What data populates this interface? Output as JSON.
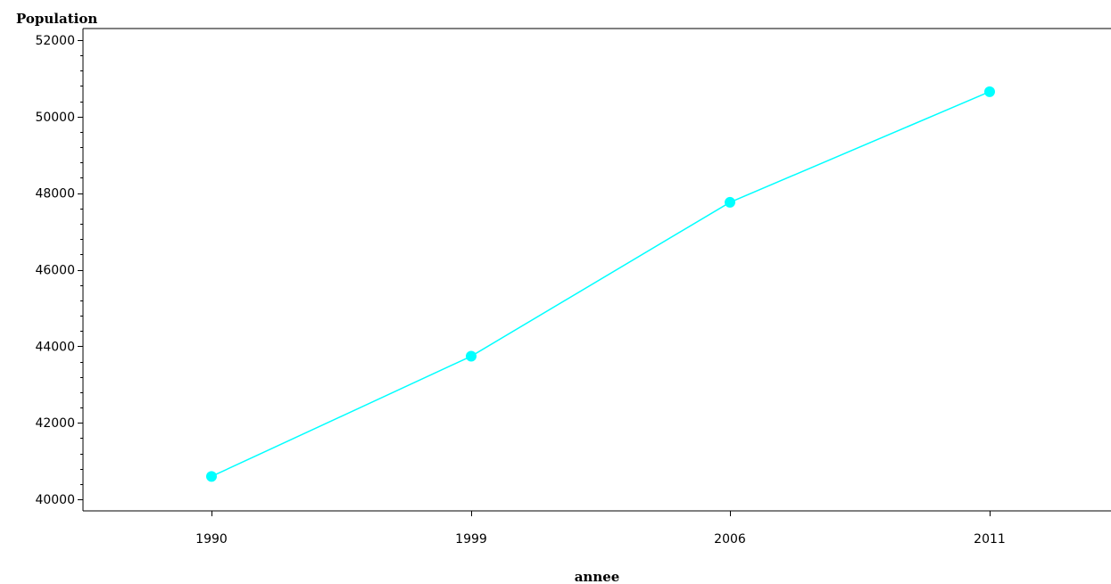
{
  "chart_data": {
    "type": "line",
    "title": "",
    "xlabel": "annee",
    "ylabel": "Population",
    "categories": [
      "1990",
      "1999",
      "2006",
      "2011"
    ],
    "series": [
      {
        "values": [
          40600,
          43740,
          47760,
          50650
        ],
        "color": "#00ffff"
      }
    ],
    "ylim": [
      39700,
      52300
    ],
    "yticks": [
      40000,
      42000,
      44000,
      46000,
      48000,
      50000,
      52000
    ],
    "ytick_labels": [
      "40000",
      "42000",
      "44000",
      "46000",
      "48000",
      "50000",
      "52000"
    ],
    "grid": false,
    "legend": "none"
  }
}
